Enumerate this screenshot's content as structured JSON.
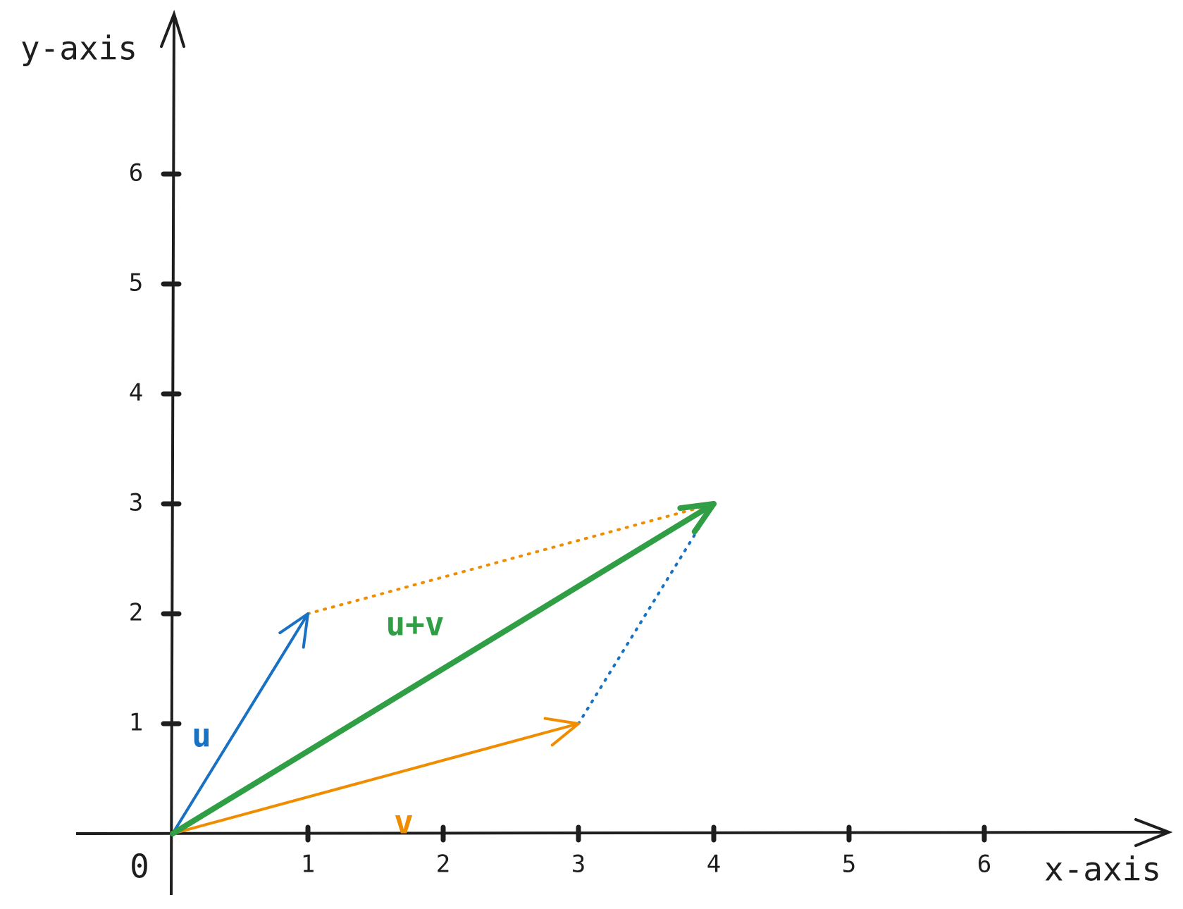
{
  "axes": {
    "x_label": "x-axis",
    "y_label": "y-axis",
    "origin_label": "0",
    "xticks": [
      1,
      2,
      3,
      4,
      5,
      6
    ],
    "yticks": [
      1,
      2,
      3,
      4,
      5,
      6
    ]
  },
  "vectors": [
    {
      "label": "u",
      "color": "#1971c2",
      "tip": [
        1,
        2
      ]
    },
    {
      "label": "v",
      "color": "#f08c00",
      "tip": [
        3,
        1
      ]
    },
    {
      "label": "u+v",
      "color": "#2f9e44",
      "tip": [
        4,
        3
      ]
    }
  ]
}
